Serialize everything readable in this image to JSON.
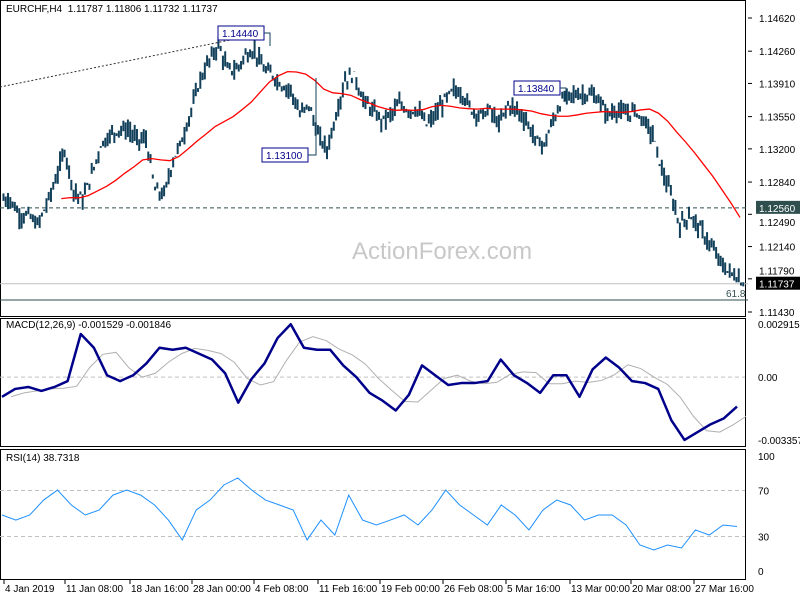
{
  "header": {
    "symbol": "EURCHF,H4",
    "ohlc": "1.11787 1.11806 1.11732 1.11737"
  },
  "watermark": "ActionForex.com",
  "colors": {
    "bars": "#12405a",
    "ma": "#ff0000",
    "macd": "#00008b",
    "signal": "#b0b0b0",
    "rsi": "#1e90ff",
    "price_tag": "#000000",
    "level_tag": "#2f4f4f"
  },
  "chart_data": [
    {
      "type": "bar",
      "title": "EURCHF,H4",
      "ylim": [
        1.1143,
        1.1462
      ],
      "yticks": [
        "1.14620",
        "1.14260",
        "1.13910",
        "1.13550",
        "1.13200",
        "1.12840",
        "1.12490",
        "1.12140",
        "1.11790",
        "1.11430"
      ],
      "xticks": [
        "4 Jan 2019",
        "11 Jan 08:00",
        "18 Jan 16:00",
        "28 Jan 00:00",
        "4 Feb 08:00",
        "11 Feb 16:00",
        "19 Feb 00:00",
        "26 Feb 08:00",
        "5 Mar 16:00",
        "13 Mar 00:00",
        "20 Mar 08:00",
        "27 Mar 16:00"
      ],
      "closes": [
        1.1265,
        1.1248,
        1.1248,
        1.1237,
        1.1259,
        1.1286,
        1.1319,
        1.1275,
        1.1265,
        1.1292,
        1.1324,
        1.1335,
        1.1341,
        1.1341,
        1.133,
        1.133,
        1.1275,
        1.127,
        1.1308,
        1.133,
        1.1362,
        1.1395,
        1.1416,
        1.1433,
        1.1406,
        1.1406,
        1.1422,
        1.1427,
        1.1406,
        1.14,
        1.1389,
        1.1384,
        1.1357,
        1.1368,
        1.1335,
        1.1319,
        1.1357,
        1.1395,
        1.14,
        1.1373,
        1.1362,
        1.1351,
        1.1357,
        1.1368,
        1.1362,
        1.1362,
        1.1346,
        1.1357,
        1.1373,
        1.1384,
        1.1379,
        1.1362,
        1.1357,
        1.1362,
        1.1346,
        1.1368,
        1.1362,
        1.1351,
        1.133,
        1.1324,
        1.1351,
        1.1373,
        1.1379,
        1.1379,
        1.1379,
        1.1373,
        1.1357,
        1.1362,
        1.1357,
        1.1362,
        1.1351,
        1.1335,
        1.1297,
        1.127,
        1.1237,
        1.1248,
        1.1237,
        1.1221,
        1.1205,
        1.1189,
        1.1183,
        1.1174
      ],
      "annotations": [
        {
          "label": "1.14440",
          "value": 1.1444
        },
        {
          "label": "1.13100",
          "value": 1.131
        },
        {
          "label": "1.13840",
          "value": 1.1384
        }
      ],
      "levels": {
        "resistance": {
          "label": "1.12560",
          "value": 1.1256
        },
        "current": {
          "label": "1.11737",
          "value": 1.11737
        },
        "fib": {
          "label": "61.8",
          "value": 1.116
        }
      },
      "ma_label": "",
      "trendline": "dotted"
    },
    {
      "type": "line",
      "title": "MACD(12,26,9) -0.001529 -0.001846",
      "ylim": [
        -0.003357,
        0.002915
      ],
      "yticks": [
        "0.002915",
        "0.00",
        "-0.003357"
      ],
      "macd": [
        -0.001,
        -0.0006,
        -0.0005,
        -0.0007,
        -0.0005,
        -0.0002,
        0.0022,
        0.0015,
        0.0001,
        -0.0002,
        0.0001,
        0.0007,
        0.0015,
        0.0014,
        0.0015,
        0.0012,
        0.0009,
        0.0002,
        -0.0013,
        -0.0001,
        0.0007,
        0.002,
        0.0027,
        0.0015,
        0.0014,
        0.0014,
        0.0006,
        0.0,
        -0.0008,
        -0.0012,
        -0.0017,
        -0.0009,
        0.0006,
        0.0001,
        -0.0004,
        -0.0003,
        -0.0003,
        -0.0002,
        0.0009,
        0.0001,
        -0.0003,
        -0.0008,
        0.0001,
        0.0001,
        -0.001,
        0.0004,
        0.001,
        0.0005,
        -0.0002,
        -0.0003,
        -0.0006,
        -0.0022,
        -0.0032,
        -0.0028,
        -0.0024,
        -0.0021,
        -0.0015
      ]
    },
    {
      "type": "line",
      "title": "RSI(14) 38.7318",
      "ylim": [
        0,
        100
      ],
      "yticks": [
        "100",
        "70",
        "30",
        "0"
      ],
      "rsi": [
        48.7,
        44.3,
        48.7,
        61.7,
        70.4,
        57.4,
        48.7,
        53,
        66,
        70.4,
        66,
        57.4,
        44.3,
        27,
        53,
        61.7,
        74.8,
        80.9,
        70.4,
        61.7,
        57.4,
        53,
        27,
        44.3,
        31.3,
        66,
        44.3,
        40,
        44.3,
        48.7,
        40,
        53,
        70.4,
        57.4,
        48.7,
        40,
        57.4,
        48.7,
        35.7,
        53,
        61.7,
        57.4,
        44.3,
        48.7,
        48.7,
        40,
        22.6,
        18.3,
        22.6,
        20,
        35.7,
        31.3,
        40,
        38.7
      ]
    }
  ]
}
